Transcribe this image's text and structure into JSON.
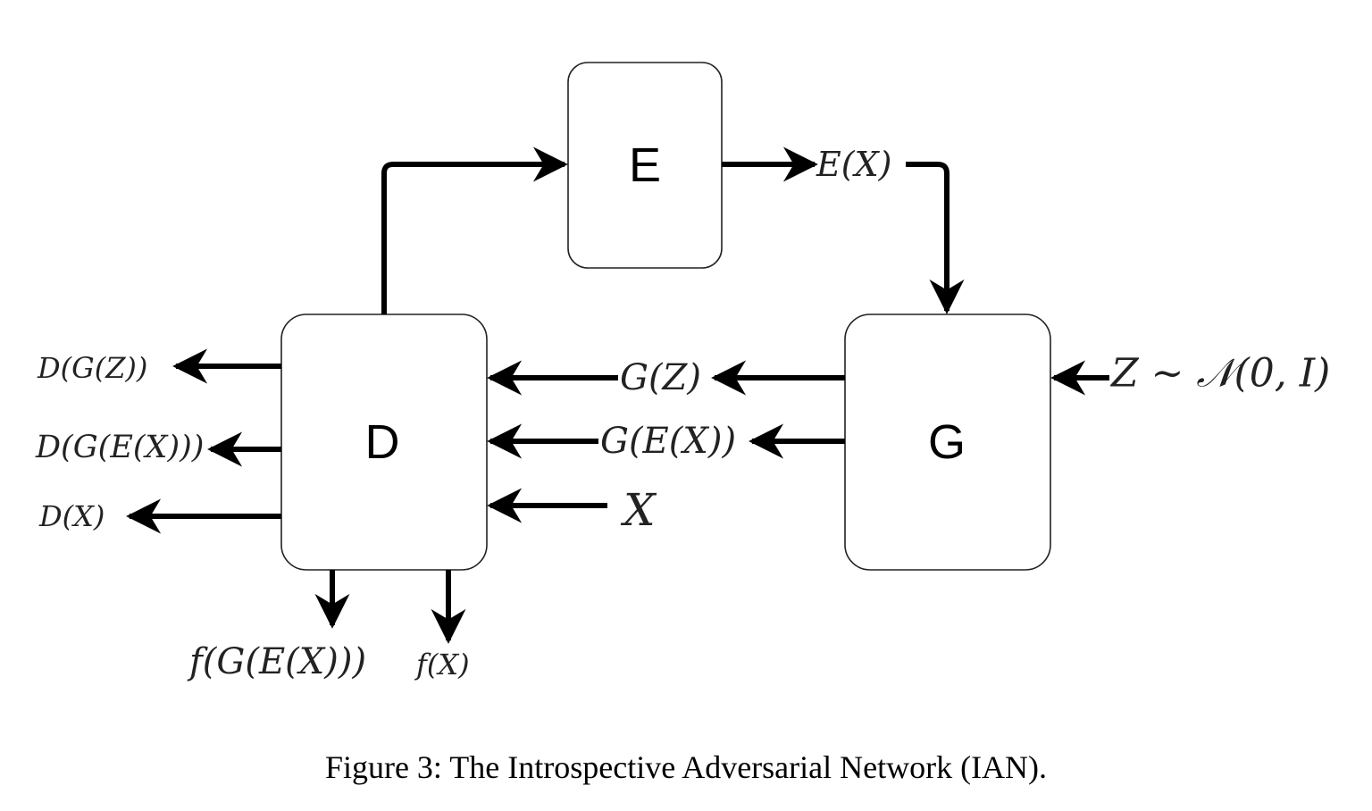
{
  "nodes": {
    "encoder": "E",
    "discriminator": "D",
    "generator": "G"
  },
  "labels": {
    "e_x": "E(X)",
    "g_z": "G(Z)",
    "g_e_x": "G(E(X))",
    "x": "X",
    "z_prior": "Z ∼ 𝒩(0, I)",
    "d_g_z": "D(G(Z))",
    "d_g_e_x": "D(G(E(X)))",
    "d_x": "D(X)",
    "f_g_e_x": "f(G(E(X)))",
    "f_x": "f(X)"
  },
  "caption": "Figure 3: The Introspective Adversarial Network (IAN).",
  "colors": {
    "stroke": "#000000",
    "box_border": "#222222",
    "background": "#ffffff"
  }
}
